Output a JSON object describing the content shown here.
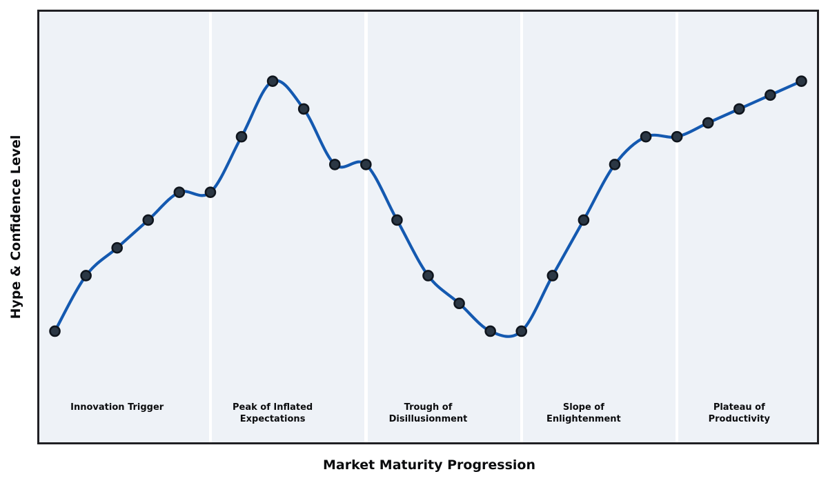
{
  "chart_data": {
    "type": "line",
    "title": "",
    "xlabel": "Market Maturity Progression",
    "ylabel": "Hype & Confidence Level",
    "x": [
      0,
      1,
      2,
      3,
      4,
      5,
      6,
      7,
      8,
      9,
      10,
      11,
      12,
      13,
      14,
      15,
      16,
      17,
      18,
      19,
      20,
      21,
      22,
      23,
      24
    ],
    "values": [
      10,
      30,
      40,
      50,
      60,
      60,
      80,
      100,
      90,
      70,
      70,
      50,
      30,
      20,
      10,
      10,
      30,
      50,
      70,
      80,
      80,
      85,
      90,
      95,
      100
    ],
    "xlim": [
      -0.5,
      24.5
    ],
    "ylim": [
      -30,
      125
    ],
    "grid": false,
    "legend": "none",
    "marker": "circle",
    "curve": "smooth-spline",
    "phase_boundaries": [
      5,
      10,
      15,
      20
    ],
    "phases": [
      {
        "label": "Innovation Trigger",
        "lines": [
          "Innovation Trigger"
        ],
        "label_x": 2
      },
      {
        "label": "Peak of Inflated Expectations",
        "lines": [
          "Peak of Inflated",
          "Expectations"
        ],
        "label_x": 7
      },
      {
        "label": "Trough of Disillusionment",
        "lines": [
          "Trough of",
          "Disillusionment"
        ],
        "label_x": 12
      },
      {
        "label": "Slope of Enlightenment",
        "lines": [
          "Slope of",
          "Enlightenment"
        ],
        "label_x": 17
      },
      {
        "label": "Plateau of Productivity",
        "lines": [
          "Plateau of",
          "Productivity"
        ],
        "label_x": 22
      }
    ]
  },
  "colors": {
    "line": "#1459b0",
    "marker_fill": "#2b3744",
    "marker_edge": "#0f151d",
    "plot_bg": "#eef2f7",
    "divider": "#ffffff",
    "border": "#202024",
    "text": "#0b0c0e",
    "figure_bg": "#ffffff"
  }
}
